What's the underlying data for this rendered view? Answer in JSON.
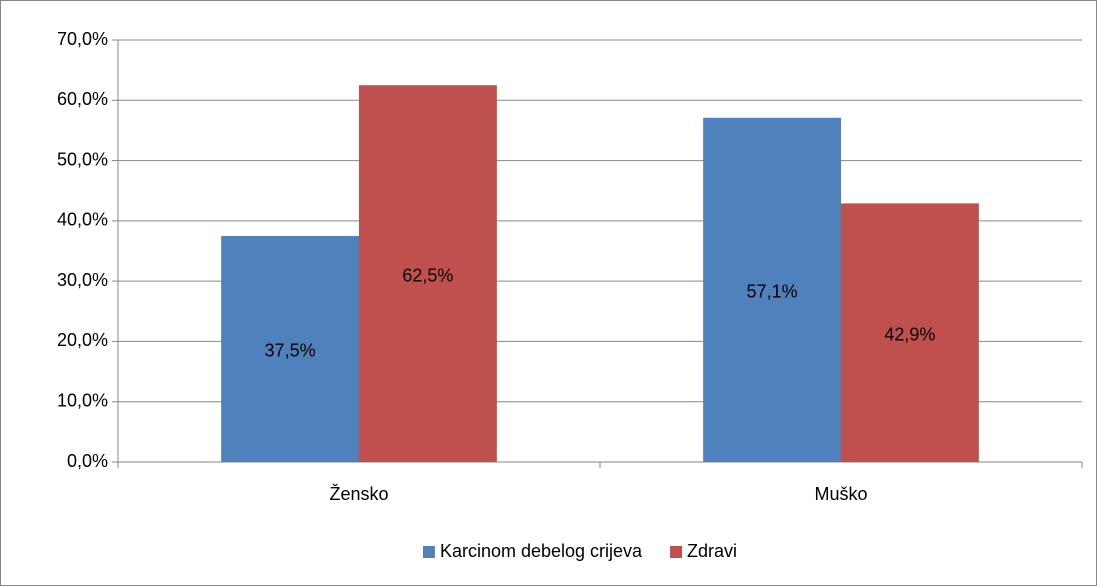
{
  "chart_data": {
    "type": "bar",
    "categories": [
      "Žensko",
      "Muško"
    ],
    "series": [
      {
        "name": "Karcinom debelog crijeva",
        "color": "#4f81bd",
        "values": [
          37.5,
          57.1
        ],
        "value_labels": [
          "37,5%",
          "57,1%"
        ]
      },
      {
        "name": "Zdravi",
        "color": "#c0504d",
        "values": [
          62.5,
          42.9
        ],
        "value_labels": [
          "62,5%",
          "42,9%"
        ]
      }
    ],
    "ylim": [
      0,
      70
    ],
    "yticks": [
      {
        "value": 0,
        "label": "0,0%"
      },
      {
        "value": 10,
        "label": "10,0%"
      },
      {
        "value": 20,
        "label": "20,0%"
      },
      {
        "value": 30,
        "label": "30,0%"
      },
      {
        "value": 40,
        "label": "40,0%"
      },
      {
        "value": 50,
        "label": "50,0%"
      },
      {
        "value": 60,
        "label": "60,0%"
      },
      {
        "value": 70,
        "label": "70,0%"
      }
    ],
    "grid": true,
    "legend": "bottom"
  }
}
